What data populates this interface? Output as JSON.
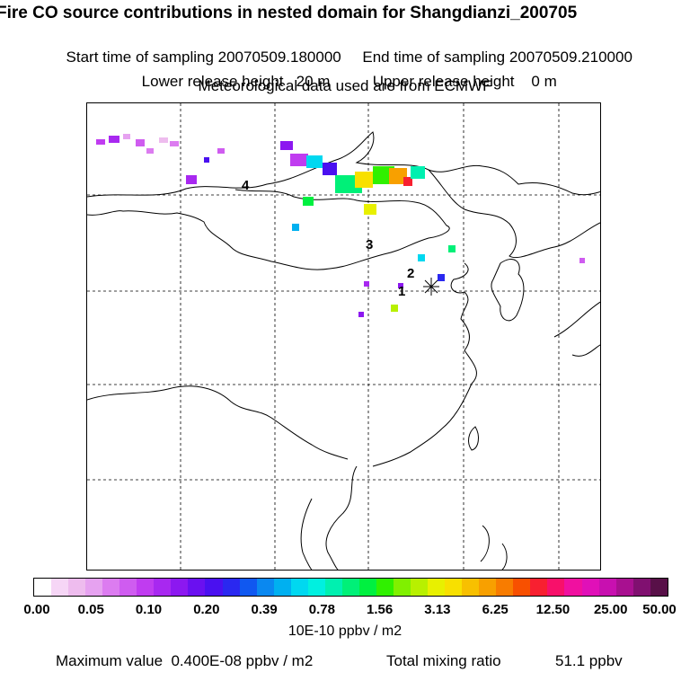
{
  "header": {
    "title": "Fire CO source contributions in nested domain for Shangdianzi_200705",
    "start_label": "Start time of sampling 20070509.180000",
    "end_label": "End time of sampling 20070509.210000",
    "lower_label": "Lower release height   20 m",
    "upper_label": "Upper release height    0 m",
    "met_label": "Meteorological data used are from ECMWF"
  },
  "map": {
    "site_labels": [
      "1",
      "2",
      "3",
      "4"
    ]
  },
  "colorbar": {
    "tick_labels": [
      "0.00",
      "0.05",
      "0.10",
      "0.20",
      "0.39",
      "0.78",
      "1.56",
      "3.13",
      "6.25",
      "12.50",
      "25.00",
      "50.00"
    ],
    "colors": [
      "#ffffff",
      "#f6d6f6",
      "#eebcee",
      "#e6a2f0",
      "#dc7cf0",
      "#cf5cf0",
      "#c03cf0",
      "#a828f0",
      "#8c18f0",
      "#6a10f0",
      "#4a10f0",
      "#2a28f0",
      "#1058f0",
      "#0a88f0",
      "#00b0f0",
      "#00d8f0",
      "#00f0e0",
      "#00f0b0",
      "#00f078",
      "#00f040",
      "#30f000",
      "#80f000",
      "#b8f000",
      "#e8f000",
      "#f8e000",
      "#f8c000",
      "#f8a000",
      "#f87c00",
      "#f85000",
      "#f82030",
      "#f8106a",
      "#f010a0",
      "#e010b8",
      "#c810b0",
      "#a81090",
      "#801070",
      "#581048"
    ],
    "units": "10E-10 ppbv / m2"
  },
  "footer": {
    "max_label": "Maximum value  0.400E-08 ppbv / m2",
    "total_label": "Total mixing ratio",
    "total_value": "51.1 ppbv"
  }
}
